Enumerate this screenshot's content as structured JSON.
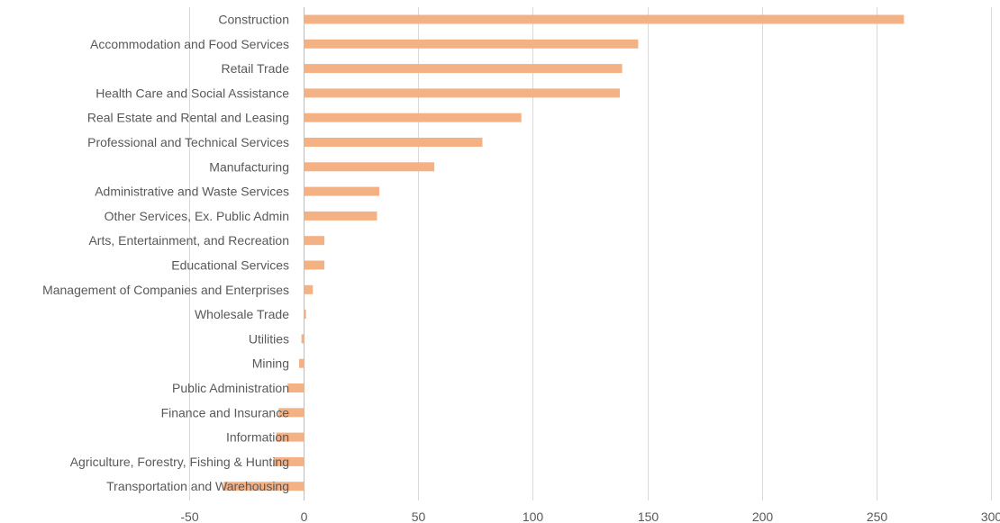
{
  "chart_data": {
    "type": "bar",
    "orientation": "horizontal",
    "title": "",
    "xlabel": "",
    "ylabel": "",
    "categories": [
      "Construction",
      "Accommodation and Food Services",
      "Retail Trade",
      "Health Care and Social Assistance",
      "Real Estate and Rental and Leasing",
      "Professional and Technical Services",
      "Manufacturing",
      "Administrative and Waste Services",
      "Other Services, Ex. Public Admin",
      "Arts, Entertainment, and Recreation",
      "Educational Services",
      "Management of Companies and Enterprises",
      "Wholesale Trade",
      "Utilities",
      "Mining",
      "Public Administration",
      "Finance and Insurance",
      "Information",
      "Agriculture, Forestry, Fishing & Hunting",
      "Transportation and Warehousing"
    ],
    "values": [
      262,
      146,
      139,
      138,
      95,
      78,
      57,
      33,
      32,
      9,
      9,
      4,
      1,
      -1,
      -2,
      -7,
      -11,
      -12,
      -13,
      -35
    ],
    "xlim": [
      -50,
      300
    ],
    "x_ticks": [
      "-50",
      "0",
      "50",
      "100",
      "150",
      "200",
      "250",
      "300"
    ],
    "x_tick_values": [
      -50,
      0,
      50,
      100,
      150,
      200,
      250,
      300
    ],
    "grid": true,
    "legend": "none",
    "bar_color": "#f4b183",
    "grid_color": "#d9d9d9",
    "axis_line_color": "#bfbfbf",
    "label_color": "#595959"
  }
}
